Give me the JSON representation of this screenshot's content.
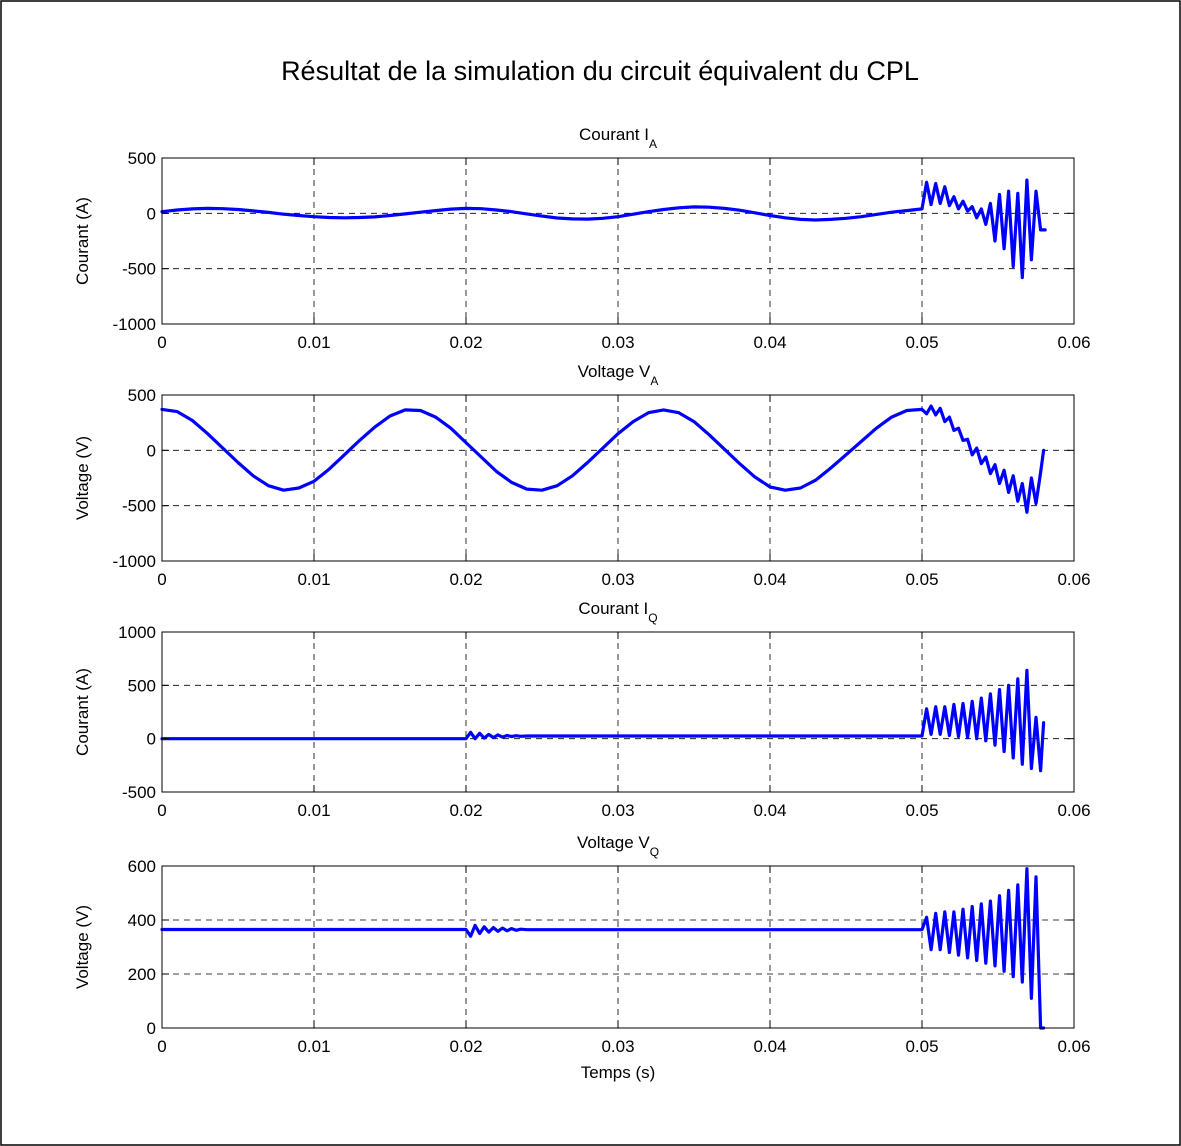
{
  "figure": {
    "title": "Résultat de la simulation du circuit équivalent du CPL",
    "line_color": "#0000ff"
  },
  "chart_data": [
    {
      "type": "line",
      "title": "Courant I",
      "title_subscript": "A",
      "xlabel": "",
      "ylabel": "Courant (A)",
      "xlim": [
        0,
        0.06
      ],
      "ylim": [
        -1000,
        500
      ],
      "xticks": [
        "0",
        "0.01",
        "0.02",
        "0.03",
        "0.04",
        "0.05",
        "0.06"
      ],
      "yticks": [
        "-1000",
        "-500",
        "0",
        "500"
      ],
      "grid": true,
      "series": [
        {
          "x": [
            0,
            0.001,
            0.002,
            0.003,
            0.004,
            0.005,
            0.006,
            0.007,
            0.008,
            0.009,
            0.01,
            0.011,
            0.012,
            0.013,
            0.014,
            0.015,
            0.016,
            0.017,
            0.018,
            0.019,
            0.02,
            0.021,
            0.022,
            0.023,
            0.024,
            0.025,
            0.026,
            0.027,
            0.028,
            0.029,
            0.03,
            0.031,
            0.032,
            0.033,
            0.034,
            0.035,
            0.036,
            0.037,
            0.038,
            0.039,
            0.04,
            0.041,
            0.042,
            0.043,
            0.044,
            0.045,
            0.046,
            0.047,
            0.048,
            0.049,
            0.05,
            0.0503,
            0.0506,
            0.0509,
            0.0512,
            0.0515,
            0.0518,
            0.0521,
            0.0524,
            0.0527,
            0.053,
            0.0533,
            0.0536,
            0.0539,
            0.0542,
            0.0545,
            0.0548,
            0.0551,
            0.0554,
            0.0557,
            0.056,
            0.0563,
            0.0566,
            0.0569,
            0.0572,
            0.0575,
            0.0578,
            0.0581
          ],
          "y": [
            15,
            30,
            40,
            45,
            42,
            35,
            22,
            8,
            -8,
            -20,
            -30,
            -38,
            -40,
            -38,
            -32,
            -20,
            -5,
            10,
            25,
            38,
            45,
            42,
            30,
            15,
            -5,
            -25,
            -42,
            -50,
            -52,
            -45,
            -30,
            -8,
            15,
            35,
            50,
            58,
            55,
            45,
            28,
            5,
            -20,
            -40,
            -55,
            -60,
            -55,
            -45,
            -30,
            -10,
            10,
            25,
            40,
            280,
            80,
            270,
            90,
            240,
            70,
            150,
            40,
            110,
            20,
            60,
            -40,
            40,
            -100,
            90,
            -250,
            170,
            -320,
            200,
            -480,
            180,
            -580,
            300,
            -420,
            200,
            -150,
            -150
          ]
        }
      ]
    },
    {
      "type": "line",
      "title": "Voltage V",
      "title_subscript": "A",
      "xlabel": "",
      "ylabel": "Voltage (V)",
      "xlim": [
        0,
        0.06
      ],
      "ylim": [
        -1000,
        500
      ],
      "xticks": [
        "0",
        "0.01",
        "0.02",
        "0.03",
        "0.04",
        "0.05",
        "0.06"
      ],
      "yticks": [
        "-1000",
        "-500",
        "0",
        "500"
      ],
      "grid": true,
      "series": [
        {
          "x": [
            0,
            0.001,
            0.002,
            0.003,
            0.004,
            0.005,
            0.006,
            0.007,
            0.008,
            0.009,
            0.01,
            0.011,
            0.012,
            0.013,
            0.014,
            0.015,
            0.016,
            0.017,
            0.018,
            0.019,
            0.02,
            0.021,
            0.022,
            0.023,
            0.024,
            0.025,
            0.026,
            0.027,
            0.028,
            0.029,
            0.03,
            0.031,
            0.032,
            0.033,
            0.034,
            0.035,
            0.036,
            0.037,
            0.038,
            0.039,
            0.04,
            0.041,
            0.042,
            0.043,
            0.044,
            0.045,
            0.046,
            0.047,
            0.048,
            0.049,
            0.05,
            0.0503,
            0.0506,
            0.0509,
            0.0512,
            0.0515,
            0.0518,
            0.0521,
            0.0524,
            0.0527,
            0.053,
            0.0533,
            0.0536,
            0.0539,
            0.0542,
            0.0545,
            0.0548,
            0.0551,
            0.0554,
            0.0557,
            0.056,
            0.0563,
            0.0566,
            0.0569,
            0.0572,
            0.0575,
            0.0578,
            0.058
          ],
          "y": [
            370,
            350,
            270,
            150,
            20,
            -110,
            -230,
            -320,
            -360,
            -340,
            -280,
            -170,
            -40,
            90,
            210,
            310,
            365,
            360,
            300,
            200,
            70,
            -60,
            -190,
            -290,
            -350,
            -360,
            -320,
            -230,
            -110,
            20,
            150,
            260,
            340,
            365,
            340,
            260,
            140,
            10,
            -120,
            -240,
            -330,
            -360,
            -340,
            -270,
            -160,
            -40,
            80,
            200,
            300,
            360,
            370,
            330,
            400,
            320,
            380,
            260,
            300,
            180,
            200,
            90,
            100,
            -40,
            20,
            -120,
            -60,
            -210,
            -130,
            -300,
            -180,
            -380,
            -230,
            -460,
            -300,
            -560,
            -250,
            -480,
            -200,
            0
          ]
        }
      ]
    },
    {
      "type": "line",
      "title": "Courant I",
      "title_subscript": "Q",
      "xlabel": "",
      "ylabel": "Courant (A)",
      "xlim": [
        0,
        0.06
      ],
      "ylim": [
        -500,
        1000
      ],
      "xticks": [
        "0",
        "0.01",
        "0.02",
        "0.03",
        "0.04",
        "0.05",
        "0.06"
      ],
      "yticks": [
        "-500",
        "0",
        "500",
        "1000"
      ],
      "grid": true,
      "series": [
        {
          "x": [
            0,
            0.02,
            0.0203,
            0.0206,
            0.0209,
            0.0212,
            0.0215,
            0.0218,
            0.0221,
            0.0224,
            0.0227,
            0.023,
            0.0233,
            0.0236,
            0.024,
            0.05,
            0.0503,
            0.0506,
            0.0509,
            0.0512,
            0.0515,
            0.0518,
            0.0521,
            0.0524,
            0.0527,
            0.053,
            0.0533,
            0.0536,
            0.0539,
            0.0542,
            0.0545,
            0.0548,
            0.0551,
            0.0554,
            0.0557,
            0.056,
            0.0563,
            0.0566,
            0.0569,
            0.0572,
            0.0575,
            0.0578,
            0.058
          ],
          "y": [
            0,
            0,
            60,
            0,
            50,
            5,
            40,
            10,
            35,
            15,
            30,
            20,
            28,
            22,
            25,
            25,
            280,
            40,
            300,
            40,
            300,
            30,
            320,
            20,
            330,
            10,
            350,
            0,
            380,
            -20,
            420,
            -60,
            460,
            -120,
            500,
            -180,
            560,
            -240,
            640,
            -280,
            200,
            -300,
            150
          ]
        }
      ]
    },
    {
      "type": "line",
      "title": "Voltage V",
      "title_subscript": "Q",
      "xlabel": "Temps (s)",
      "ylabel": "Voltage (V)",
      "xlim": [
        0,
        0.06
      ],
      "ylim": [
        0,
        600
      ],
      "xticks": [
        "0",
        "0.01",
        "0.02",
        "0.03",
        "0.04",
        "0.05",
        "0.06"
      ],
      "yticks": [
        "0",
        "200",
        "400",
        "600"
      ],
      "grid": true,
      "series": [
        {
          "x": [
            0,
            0.02,
            0.0203,
            0.0206,
            0.0209,
            0.0212,
            0.0215,
            0.0218,
            0.0221,
            0.0224,
            0.0227,
            0.023,
            0.0233,
            0.0236,
            0.024,
            0.026,
            0.028,
            0.03,
            0.05,
            0.0503,
            0.0506,
            0.0509,
            0.0512,
            0.0515,
            0.0518,
            0.0521,
            0.0524,
            0.0527,
            0.053,
            0.0533,
            0.0536,
            0.0539,
            0.0542,
            0.0545,
            0.0548,
            0.0551,
            0.0554,
            0.0557,
            0.056,
            0.0563,
            0.0566,
            0.0569,
            0.0572,
            0.0575,
            0.0578,
            0.058
          ],
          "y": [
            365,
            365,
            340,
            380,
            350,
            375,
            355,
            372,
            358,
            370,
            360,
            368,
            362,
            366,
            364,
            364,
            364,
            364,
            364,
            410,
            290,
            425,
            290,
            430,
            280,
            430,
            270,
            440,
            260,
            450,
            250,
            460,
            240,
            470,
            230,
            490,
            210,
            510,
            190,
            530,
            170,
            590,
            110,
            560,
            0,
            0
          ]
        }
      ]
    }
  ]
}
